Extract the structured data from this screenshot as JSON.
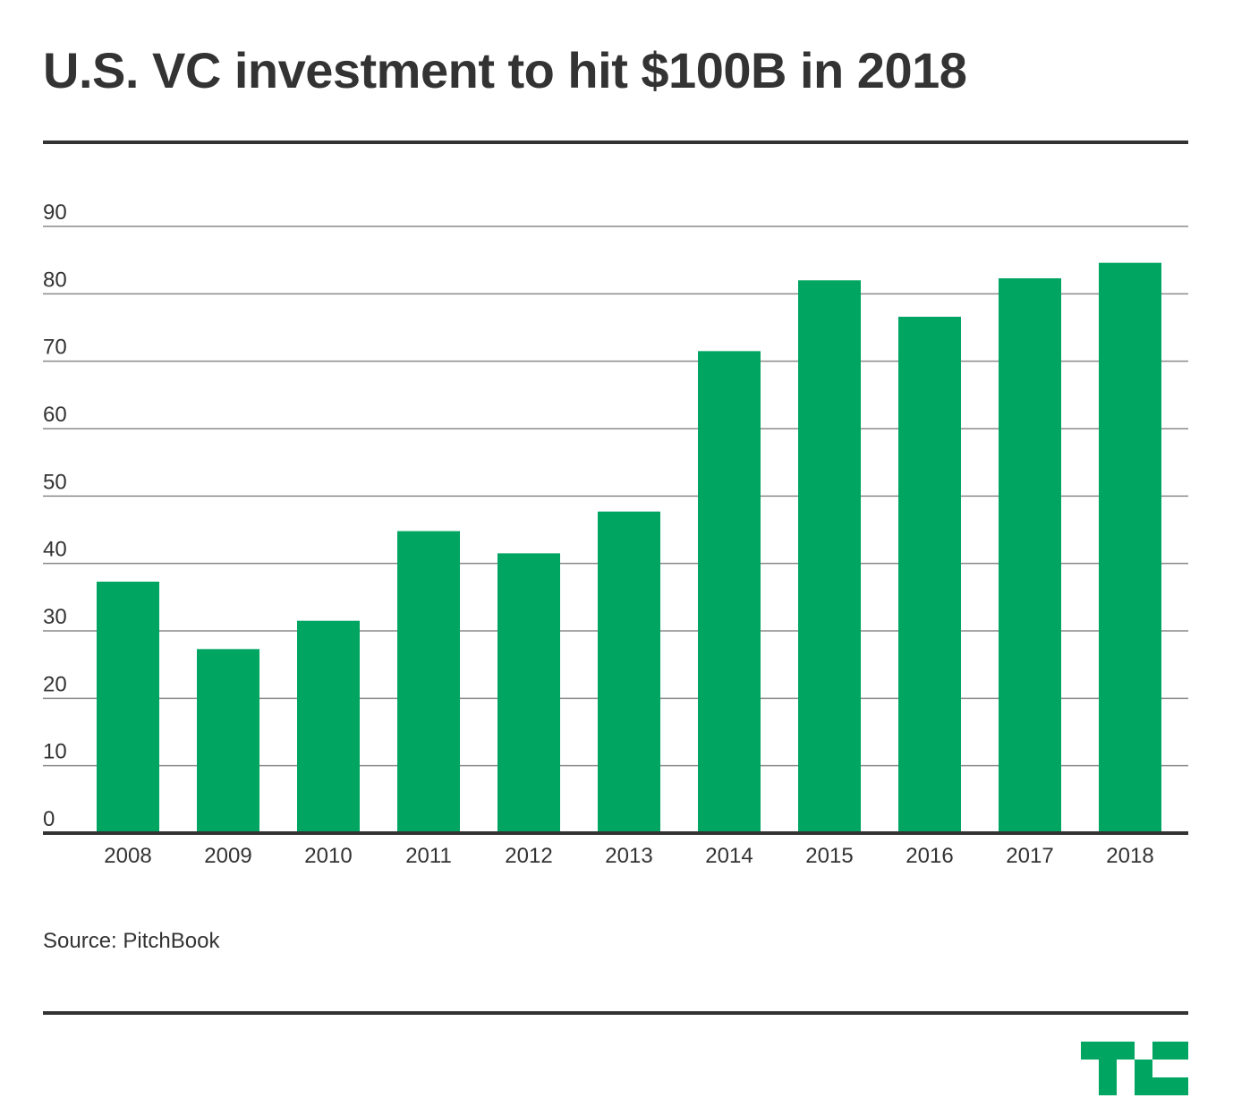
{
  "title": "U.S. VC investment to hit $100B in 2018",
  "source": "Source: PitchBook",
  "colors": {
    "bar": "#00a562",
    "text": "#333333",
    "grid": "#8a8a8a",
    "rule": "#333333",
    "logo": "#00a562"
  },
  "logo_icon": "techcrunch-tc-logo",
  "chart_data": {
    "type": "bar",
    "title": "U.S. VC investment to hit $100B in 2018",
    "xlabel": "",
    "ylabel": "",
    "categories": [
      "2008",
      "2009",
      "2010",
      "2011",
      "2012",
      "2013",
      "2014",
      "2015",
      "2016",
      "2017",
      "2018"
    ],
    "values": [
      37.3,
      27.3,
      31.5,
      44.8,
      41.5,
      47.7,
      71.5,
      82.0,
      76.6,
      82.3,
      84.6
    ],
    "ylim": [
      0,
      90
    ],
    "yticks": [
      0,
      10,
      20,
      30,
      40,
      50,
      60,
      70,
      80,
      90
    ],
    "grid": true,
    "legend": "none"
  }
}
